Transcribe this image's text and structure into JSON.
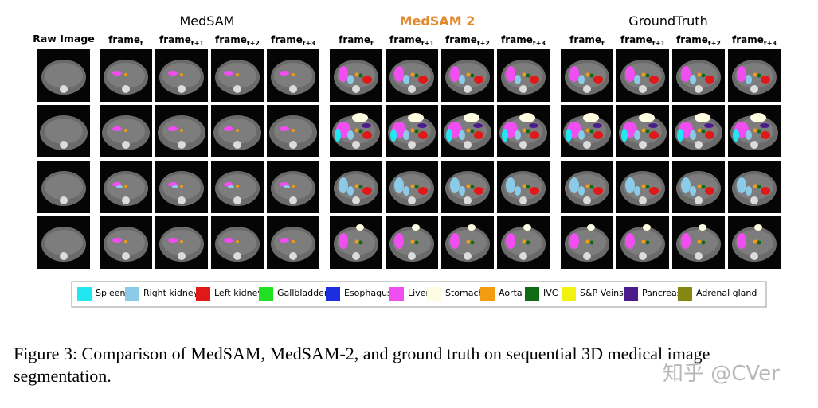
{
  "raw_label": "Raw Image",
  "groups": [
    {
      "title": "MedSAM",
      "frames": [
        {
          "text": "frame",
          "sub": "t"
        },
        {
          "text": "frame",
          "sub": "t+1"
        },
        {
          "text": "frame",
          "sub": "t+2"
        },
        {
          "text": "frame",
          "sub": "t+3"
        }
      ]
    },
    {
      "title": "MedSAM 2",
      "color": "#e38b2c",
      "frames": [
        {
          "text": "frame",
          "sub": "t"
        },
        {
          "text": "frame",
          "sub": "t+1"
        },
        {
          "text": "frame",
          "sub": "t+2"
        },
        {
          "text": "frame",
          "sub": "t+3"
        }
      ]
    },
    {
      "title": "GroundTruth",
      "frames": [
        {
          "text": "frame",
          "sub": "t"
        },
        {
          "text": "frame",
          "sub": "t+1"
        },
        {
          "text": "frame",
          "sub": "t+2"
        },
        {
          "text": "frame",
          "sub": "t+3"
        }
      ]
    }
  ],
  "legend": [
    {
      "name": "Spleen",
      "color": "#22e6f0"
    },
    {
      "name": "Right kidney",
      "color": "#8ccbe8"
    },
    {
      "name": "Left kidney",
      "color": "#e01818"
    },
    {
      "name": "Gallbladder",
      "color": "#22e022"
    },
    {
      "name": "Esophagus",
      "color": "#1c2ee0"
    },
    {
      "name": "Liver",
      "color": "#f04ef0"
    },
    {
      "name": "Stomach",
      "color": "#fdfbe0"
    },
    {
      "name": "Aorta",
      "color": "#f39c12"
    },
    {
      "name": "IVC",
      "color": "#0f6b12"
    },
    {
      "name": "S&P Veins",
      "color": "#f2f20f"
    },
    {
      "name": "Pancreas",
      "color": "#4b1a8c"
    },
    {
      "name": "Adrenal gland",
      "color": "#868613"
    }
  ],
  "caption": [
    "Figure 3: Comparison of MedSAM, MedSAM-2, and ground truth on sequential 3D medical image",
    "segmentation."
  ],
  "watermark": "知乎 @CVer"
}
